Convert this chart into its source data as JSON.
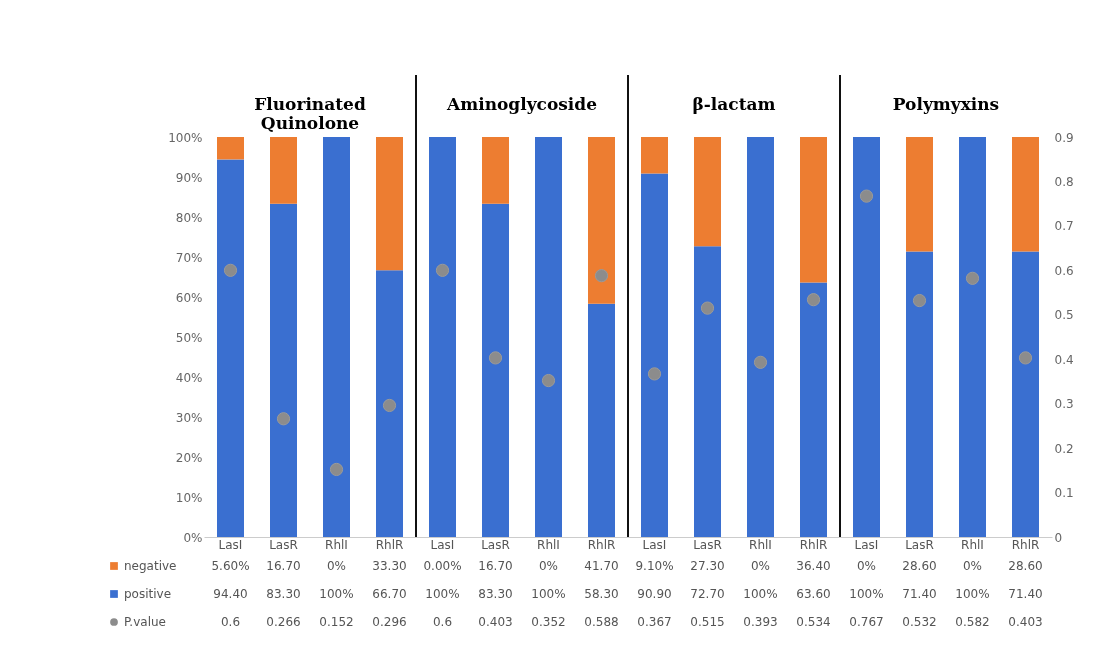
{
  "chart_data": {
    "type": "bar",
    "stacked": true,
    "legend": "bottom",
    "marker": "circle",
    "categories": [
      "LasI",
      "LasR",
      "RhlI",
      "RhlR",
      "LasI",
      "LasR",
      "RhlI",
      "RhlR",
      "LasI",
      "LasR",
      "RhlI",
      "RhlR",
      "LasI",
      "LasR",
      "RhlI",
      "RhlR"
    ],
    "series": [
      {
        "name": "positive",
        "color": "#3a6fd0",
        "values": [
          94.4,
          83.3,
          100,
          66.7,
          100,
          83.3,
          100,
          58.3,
          90.9,
          72.7,
          100,
          63.6,
          100,
          71.4,
          100,
          71.4
        ],
        "value_labels": [
          "94.40",
          "83.30",
          "100%",
          "66.70",
          "100%",
          "83.30",
          "100%",
          "58.30",
          "90.90",
          "72.70",
          "100%",
          "63.60",
          "100%",
          "71.40",
          "100%",
          "71.40"
        ]
      },
      {
        "name": "negative",
        "color": "#ed7d31",
        "values": [
          5.6,
          16.7,
          0,
          33.3,
          0,
          16.7,
          0,
          41.7,
          9.1,
          27.3,
          0,
          36.4,
          0,
          28.6,
          0,
          28.6
        ],
        "value_labels": [
          "5.60%",
          "16.70",
          "0%",
          "33.30",
          "0.00%",
          "16.70",
          "0%",
          "41.70",
          "9.10%",
          "27.30",
          "0%",
          "36.40",
          "0%",
          "28.60",
          "0%",
          "28.60"
        ]
      },
      {
        "name": "P.value",
        "type": "scatter",
        "axis": "y2",
        "color": "#8c8c8c",
        "values": [
          0.6,
          0.266,
          0.152,
          0.296,
          0.6,
          0.403,
          0.352,
          0.588,
          0.367,
          0.515,
          0.393,
          0.534,
          0.767,
          0.532,
          0.582,
          0.403
        ],
        "value_labels": [
          "0.6",
          "0.266",
          "0.152",
          "0.296",
          "0.6",
          "0.403",
          "0.352",
          "0.588",
          "0.367",
          "0.515",
          "0.393",
          "0.534",
          "0.767",
          "0.532",
          "0.582",
          "0.403"
        ]
      }
    ],
    "ylim": [
      0,
      100
    ],
    "yticks": [
      {
        "value": 0,
        "label": "0%"
      },
      {
        "value": 10,
        "label": "10%"
      },
      {
        "value": 20,
        "label": "20%"
      },
      {
        "value": 30,
        "label": "30%"
      },
      {
        "value": 40,
        "label": "40%"
      },
      {
        "value": 50,
        "label": "50%"
      },
      {
        "value": 60,
        "label": "60%"
      },
      {
        "value": 70,
        "label": "70%"
      },
      {
        "value": 80,
        "label": "80%"
      },
      {
        "value": 90,
        "label": "90%"
      },
      {
        "value": 100,
        "label": "100%"
      }
    ],
    "y2lim": [
      0,
      0.9
    ],
    "y2ticks": [
      0,
      0.1,
      0.2,
      0.3,
      0.4,
      0.5,
      0.6,
      0.7,
      0.8,
      0.9
    ],
    "annotations": [
      "Fluorinated Quinolone",
      "Aminoglycoside",
      "β-lactam",
      "Polymyxins"
    ]
  }
}
